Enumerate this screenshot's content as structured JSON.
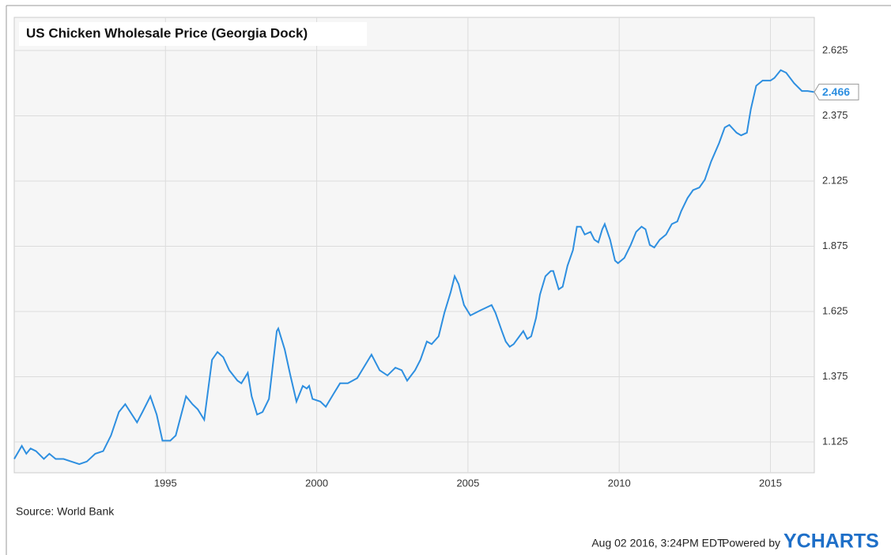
{
  "chart_data": {
    "type": "line",
    "title": "US Chicken Wholesale Price (Georgia Dock)",
    "source": "Source: World Bank",
    "timestamp": "Aug 02 2016, 3:24PM EDT.",
    "powered_by": "Powered by",
    "brand": "YCHARTS",
    "color": "#2e8fe0",
    "grid": true,
    "xlim": [
      1990.0,
      2016.45
    ],
    "xticks": [
      1995,
      2000,
      2005,
      2010,
      2015
    ],
    "ylim": [
      1.007,
      2.752
    ],
    "yticks": [
      1.125,
      1.375,
      1.625,
      1.875,
      2.125,
      2.375,
      2.625
    ],
    "x": [
      1990.0,
      1990.25,
      1990.4,
      1990.54,
      1990.72,
      1990.98,
      1991.16,
      1991.37,
      1991.63,
      1991.89,
      1992.15,
      1992.4,
      1992.68,
      1992.94,
      1993.2,
      1993.46,
      1993.67,
      1994.06,
      1994.24,
      1994.5,
      1994.71,
      1994.9,
      1995.16,
      1995.34,
      1995.68,
      1995.89,
      1996.07,
      1996.28,
      1996.54,
      1996.72,
      1996.91,
      1997.11,
      1997.38,
      1997.51,
      1997.72,
      1997.85,
      1998.03,
      1998.21,
      1998.42,
      1998.55,
      1998.68,
      1998.73,
      1998.94,
      1999.13,
      1999.33,
      1999.54,
      1999.67,
      1999.75,
      1999.86,
      2000.12,
      2000.3,
      2000.56,
      2000.77,
      2001.03,
      2001.34,
      2001.55,
      2001.81,
      2002.08,
      2002.34,
      2002.6,
      2002.81,
      2002.99,
      2003.25,
      2003.43,
      2003.64,
      2003.8,
      2004.03,
      2004.22,
      2004.43,
      2004.56,
      2004.69,
      2004.87,
      2005.08,
      2005.42,
      2005.6,
      2005.78,
      2005.91,
      2006.12,
      2006.25,
      2006.38,
      2006.51,
      2006.7,
      2006.83,
      2006.96,
      2007.09,
      2007.25,
      2007.38,
      2007.56,
      2007.74,
      2007.82,
      2008.0,
      2008.13,
      2008.29,
      2008.47,
      2008.6,
      2008.73,
      2008.86,
      2009.05,
      2009.18,
      2009.31,
      2009.44,
      2009.52,
      2009.7,
      2009.86,
      2009.96,
      2010.17,
      2010.38,
      2010.56,
      2010.74,
      2010.87,
      2011.01,
      2011.16,
      2011.34,
      2011.55,
      2011.74,
      2011.92,
      2012.05,
      2012.26,
      2012.44,
      2012.65,
      2012.83,
      2013.04,
      2013.3,
      2013.49,
      2013.64,
      2013.88,
      2014.03,
      2014.22,
      2014.35,
      2014.53,
      2014.74,
      2015.0,
      2015.13,
      2015.34,
      2015.52,
      2015.78,
      2016.04,
      2016.23,
      2016.44
    ],
    "values": [
      1.06,
      1.11,
      1.08,
      1.1,
      1.09,
      1.06,
      1.08,
      1.06,
      1.06,
      1.05,
      1.04,
      1.05,
      1.08,
      1.09,
      1.15,
      1.24,
      1.27,
      1.2,
      1.24,
      1.3,
      1.23,
      1.13,
      1.13,
      1.15,
      1.3,
      1.27,
      1.25,
      1.21,
      1.44,
      1.47,
      1.45,
      1.4,
      1.36,
      1.35,
      1.39,
      1.3,
      1.23,
      1.24,
      1.29,
      1.42,
      1.55,
      1.56,
      1.48,
      1.38,
      1.28,
      1.34,
      1.33,
      1.34,
      1.29,
      1.28,
      1.26,
      1.31,
      1.35,
      1.35,
      1.37,
      1.41,
      1.46,
      1.4,
      1.38,
      1.41,
      1.4,
      1.36,
      1.4,
      1.44,
      1.51,
      1.5,
      1.53,
      1.62,
      1.7,
      1.76,
      1.73,
      1.65,
      1.61,
      1.63,
      1.64,
      1.65,
      1.62,
      1.55,
      1.51,
      1.49,
      1.5,
      1.53,
      1.55,
      1.52,
      1.53,
      1.6,
      1.69,
      1.76,
      1.78,
      1.78,
      1.71,
      1.72,
      1.8,
      1.86,
      1.95,
      1.95,
      1.92,
      1.93,
      1.9,
      1.89,
      1.94,
      1.96,
      1.9,
      1.82,
      1.81,
      1.83,
      1.88,
      1.93,
      1.95,
      1.94,
      1.88,
      1.87,
      1.9,
      1.92,
      1.96,
      1.97,
      2.01,
      2.06,
      2.09,
      2.1,
      2.13,
      2.2,
      2.27,
      2.33,
      2.34,
      2.31,
      2.3,
      2.31,
      2.4,
      2.49,
      2.51,
      2.51,
      2.52,
      2.55,
      2.54,
      2.5,
      2.47,
      2.47,
      2.466
    ]
  }
}
